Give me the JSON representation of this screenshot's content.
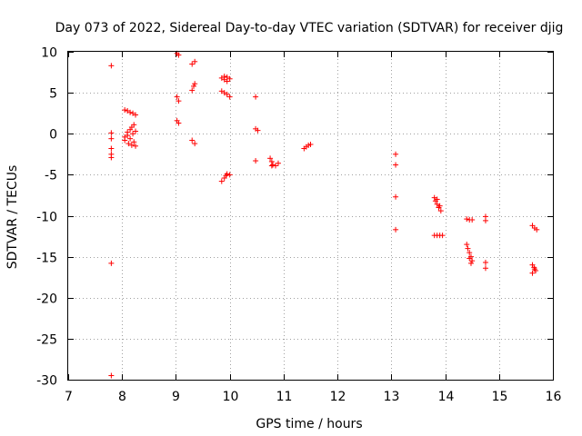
{
  "chart_data": {
    "type": "scatter",
    "title": "Day 073 of 2022, Sidereal Day-to-day VTEC variation (SDTVAR) for receiver djig",
    "xlabel": "GPS time / hours",
    "ylabel": "SDTVAR / TECUs",
    "xlim": [
      7,
      16
    ],
    "ylim": [
      -30,
      10
    ],
    "xticks": [
      7,
      8,
      9,
      10,
      11,
      12,
      13,
      14,
      15,
      16
    ],
    "yticks": [
      -30,
      -25,
      -20,
      -15,
      -10,
      -5,
      0,
      5,
      10
    ],
    "grid": true,
    "marker": "+",
    "color": "#ff0000",
    "series": [
      {
        "name": "SDTVAR",
        "points": [
          [
            7.8,
            8.3
          ],
          [
            7.8,
            0.1
          ],
          [
            7.8,
            -0.6
          ],
          [
            7.8,
            -1.8
          ],
          [
            7.8,
            -2.5
          ],
          [
            7.8,
            -2.9
          ],
          [
            7.8,
            -15.8
          ],
          [
            7.8,
            -29.5
          ],
          [
            8.05,
            2.9
          ],
          [
            8.1,
            2.8
          ],
          [
            8.15,
            2.6
          ],
          [
            8.2,
            2.5
          ],
          [
            8.25,
            2.3
          ],
          [
            8.05,
            -0.8
          ],
          [
            8.05,
            -0.4
          ],
          [
            8.1,
            -0.2
          ],
          [
            8.1,
            0.2
          ],
          [
            8.12,
            -1.2
          ],
          [
            8.15,
            0.5
          ],
          [
            8.15,
            -0.6
          ],
          [
            8.18,
            0.8
          ],
          [
            8.18,
            -1.4
          ],
          [
            8.2,
            0.0
          ],
          [
            8.22,
            1.1
          ],
          [
            8.22,
            -1.0
          ],
          [
            8.25,
            -1.5
          ],
          [
            8.25,
            0.3
          ],
          [
            9.02,
            9.8
          ],
          [
            9.05,
            9.6
          ],
          [
            9.02,
            4.5
          ],
          [
            9.05,
            4.0
          ],
          [
            9.02,
            1.6
          ],
          [
            9.05,
            1.3
          ],
          [
            9.3,
            8.5
          ],
          [
            9.35,
            8.8
          ],
          [
            9.3,
            5.3
          ],
          [
            9.33,
            5.8
          ],
          [
            9.35,
            6.1
          ],
          [
            9.3,
            -0.8
          ],
          [
            9.35,
            -1.2
          ],
          [
            9.85,
            6.8
          ],
          [
            9.9,
            6.6
          ],
          [
            9.95,
            6.4
          ],
          [
            10.0,
            6.7
          ],
          [
            9.9,
            7.0
          ],
          [
            9.95,
            6.9
          ],
          [
            9.85,
            5.2
          ],
          [
            9.9,
            5.0
          ],
          [
            9.95,
            4.8
          ],
          [
            10.0,
            4.5
          ],
          [
            9.85,
            -5.8
          ],
          [
            9.9,
            -5.4
          ],
          [
            9.93,
            -5.1
          ],
          [
            9.95,
            -4.9
          ],
          [
            10.0,
            -5.0
          ],
          [
            10.48,
            4.5
          ],
          [
            10.48,
            0.6
          ],
          [
            10.52,
            0.4
          ],
          [
            10.48,
            -3.3
          ],
          [
            10.75,
            -3.0
          ],
          [
            10.78,
            -3.4
          ],
          [
            10.8,
            -3.8
          ],
          [
            10.85,
            -3.9
          ],
          [
            10.9,
            -3.6
          ],
          [
            10.78,
            -3.9
          ],
          [
            11.38,
            -1.8
          ],
          [
            11.42,
            -1.6
          ],
          [
            11.46,
            -1.4
          ],
          [
            11.5,
            -1.3
          ],
          [
            13.08,
            -2.5
          ],
          [
            13.08,
            -3.8
          ],
          [
            13.08,
            -7.7
          ],
          [
            13.08,
            -11.7
          ],
          [
            13.8,
            -7.8
          ],
          [
            13.82,
            -8.2
          ],
          [
            13.85,
            -8.6
          ],
          [
            13.88,
            -9.0
          ],
          [
            13.92,
            -9.4
          ],
          [
            13.85,
            -8.0
          ],
          [
            13.9,
            -8.8
          ],
          [
            13.8,
            -12.4
          ],
          [
            13.85,
            -12.4
          ],
          [
            13.9,
            -12.4
          ],
          [
            13.95,
            -12.4
          ],
          [
            14.4,
            -10.4
          ],
          [
            14.45,
            -10.5
          ],
          [
            14.5,
            -10.5
          ],
          [
            14.4,
            -13.5
          ],
          [
            14.42,
            -14.0
          ],
          [
            14.45,
            -14.5
          ],
          [
            14.48,
            -15.0
          ],
          [
            14.5,
            -15.5
          ],
          [
            14.45,
            -15.2
          ],
          [
            14.48,
            -15.8
          ],
          [
            14.75,
            -10.1
          ],
          [
            14.75,
            -10.6
          ],
          [
            14.75,
            -15.7
          ],
          [
            14.75,
            -16.4
          ],
          [
            15.62,
            -11.2
          ],
          [
            15.66,
            -11.5
          ],
          [
            15.7,
            -11.7
          ],
          [
            15.62,
            -16.0
          ],
          [
            15.65,
            -16.3
          ],
          [
            15.68,
            -16.7
          ],
          [
            15.62,
            -17.0
          ],
          [
            15.66,
            -16.5
          ]
        ]
      }
    ]
  }
}
